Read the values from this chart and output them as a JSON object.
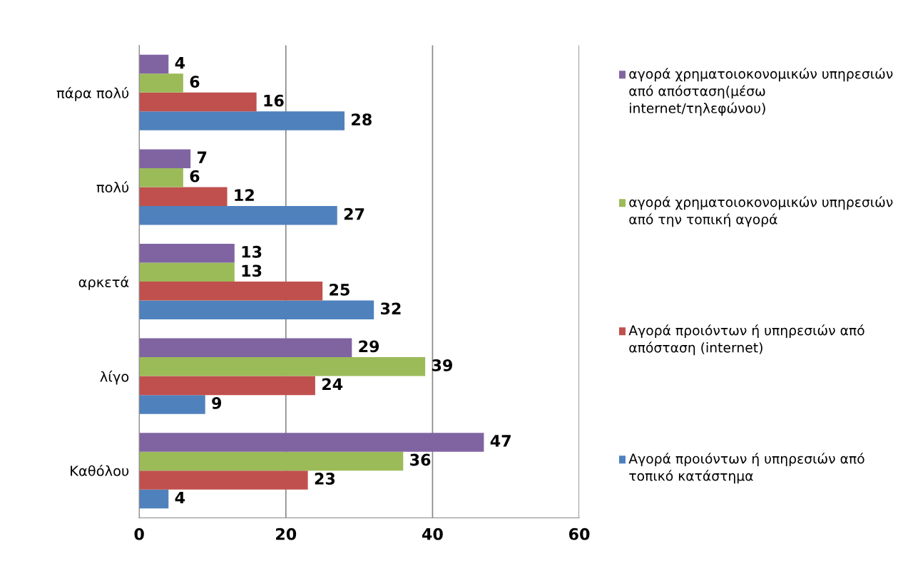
{
  "chart_data": {
    "type": "bar",
    "orientation": "horizontal",
    "categories": [
      "πάρα πολύ",
      "πολύ",
      "αρκετά",
      "λίγο",
      "Καθόλου"
    ],
    "series": [
      {
        "name": "Αγορά προιόντων ή υπηρεσιών από τοπικό κατάστημα",
        "color": "#4f81bd",
        "values": [
          28,
          27,
          32,
          9,
          4
        ]
      },
      {
        "name": "Αγορά προιόντων ή υπηρεσιών από απόσταση (internet)",
        "color": "#c0504d",
        "values": [
          16,
          12,
          25,
          24,
          23
        ]
      },
      {
        "name": "αγορά χρηματοιοκονομικών υπηρεσιών από την τοπική αγορά",
        "color": "#9bbb59",
        "values": [
          6,
          6,
          13,
          39,
          36
        ]
      },
      {
        "name": "αγορά χρηματοιοκονομικών υπηρεσιών από απόσταση(μέσω internet/τηλεφώνου)",
        "color": "#8064a2",
        "values": [
          4,
          7,
          13,
          29,
          47
        ]
      }
    ],
    "xlim": [
      0,
      60
    ],
    "xticks": [
      0,
      20,
      40,
      60
    ],
    "grid": "x",
    "legend": "right",
    "data_labels": true
  }
}
